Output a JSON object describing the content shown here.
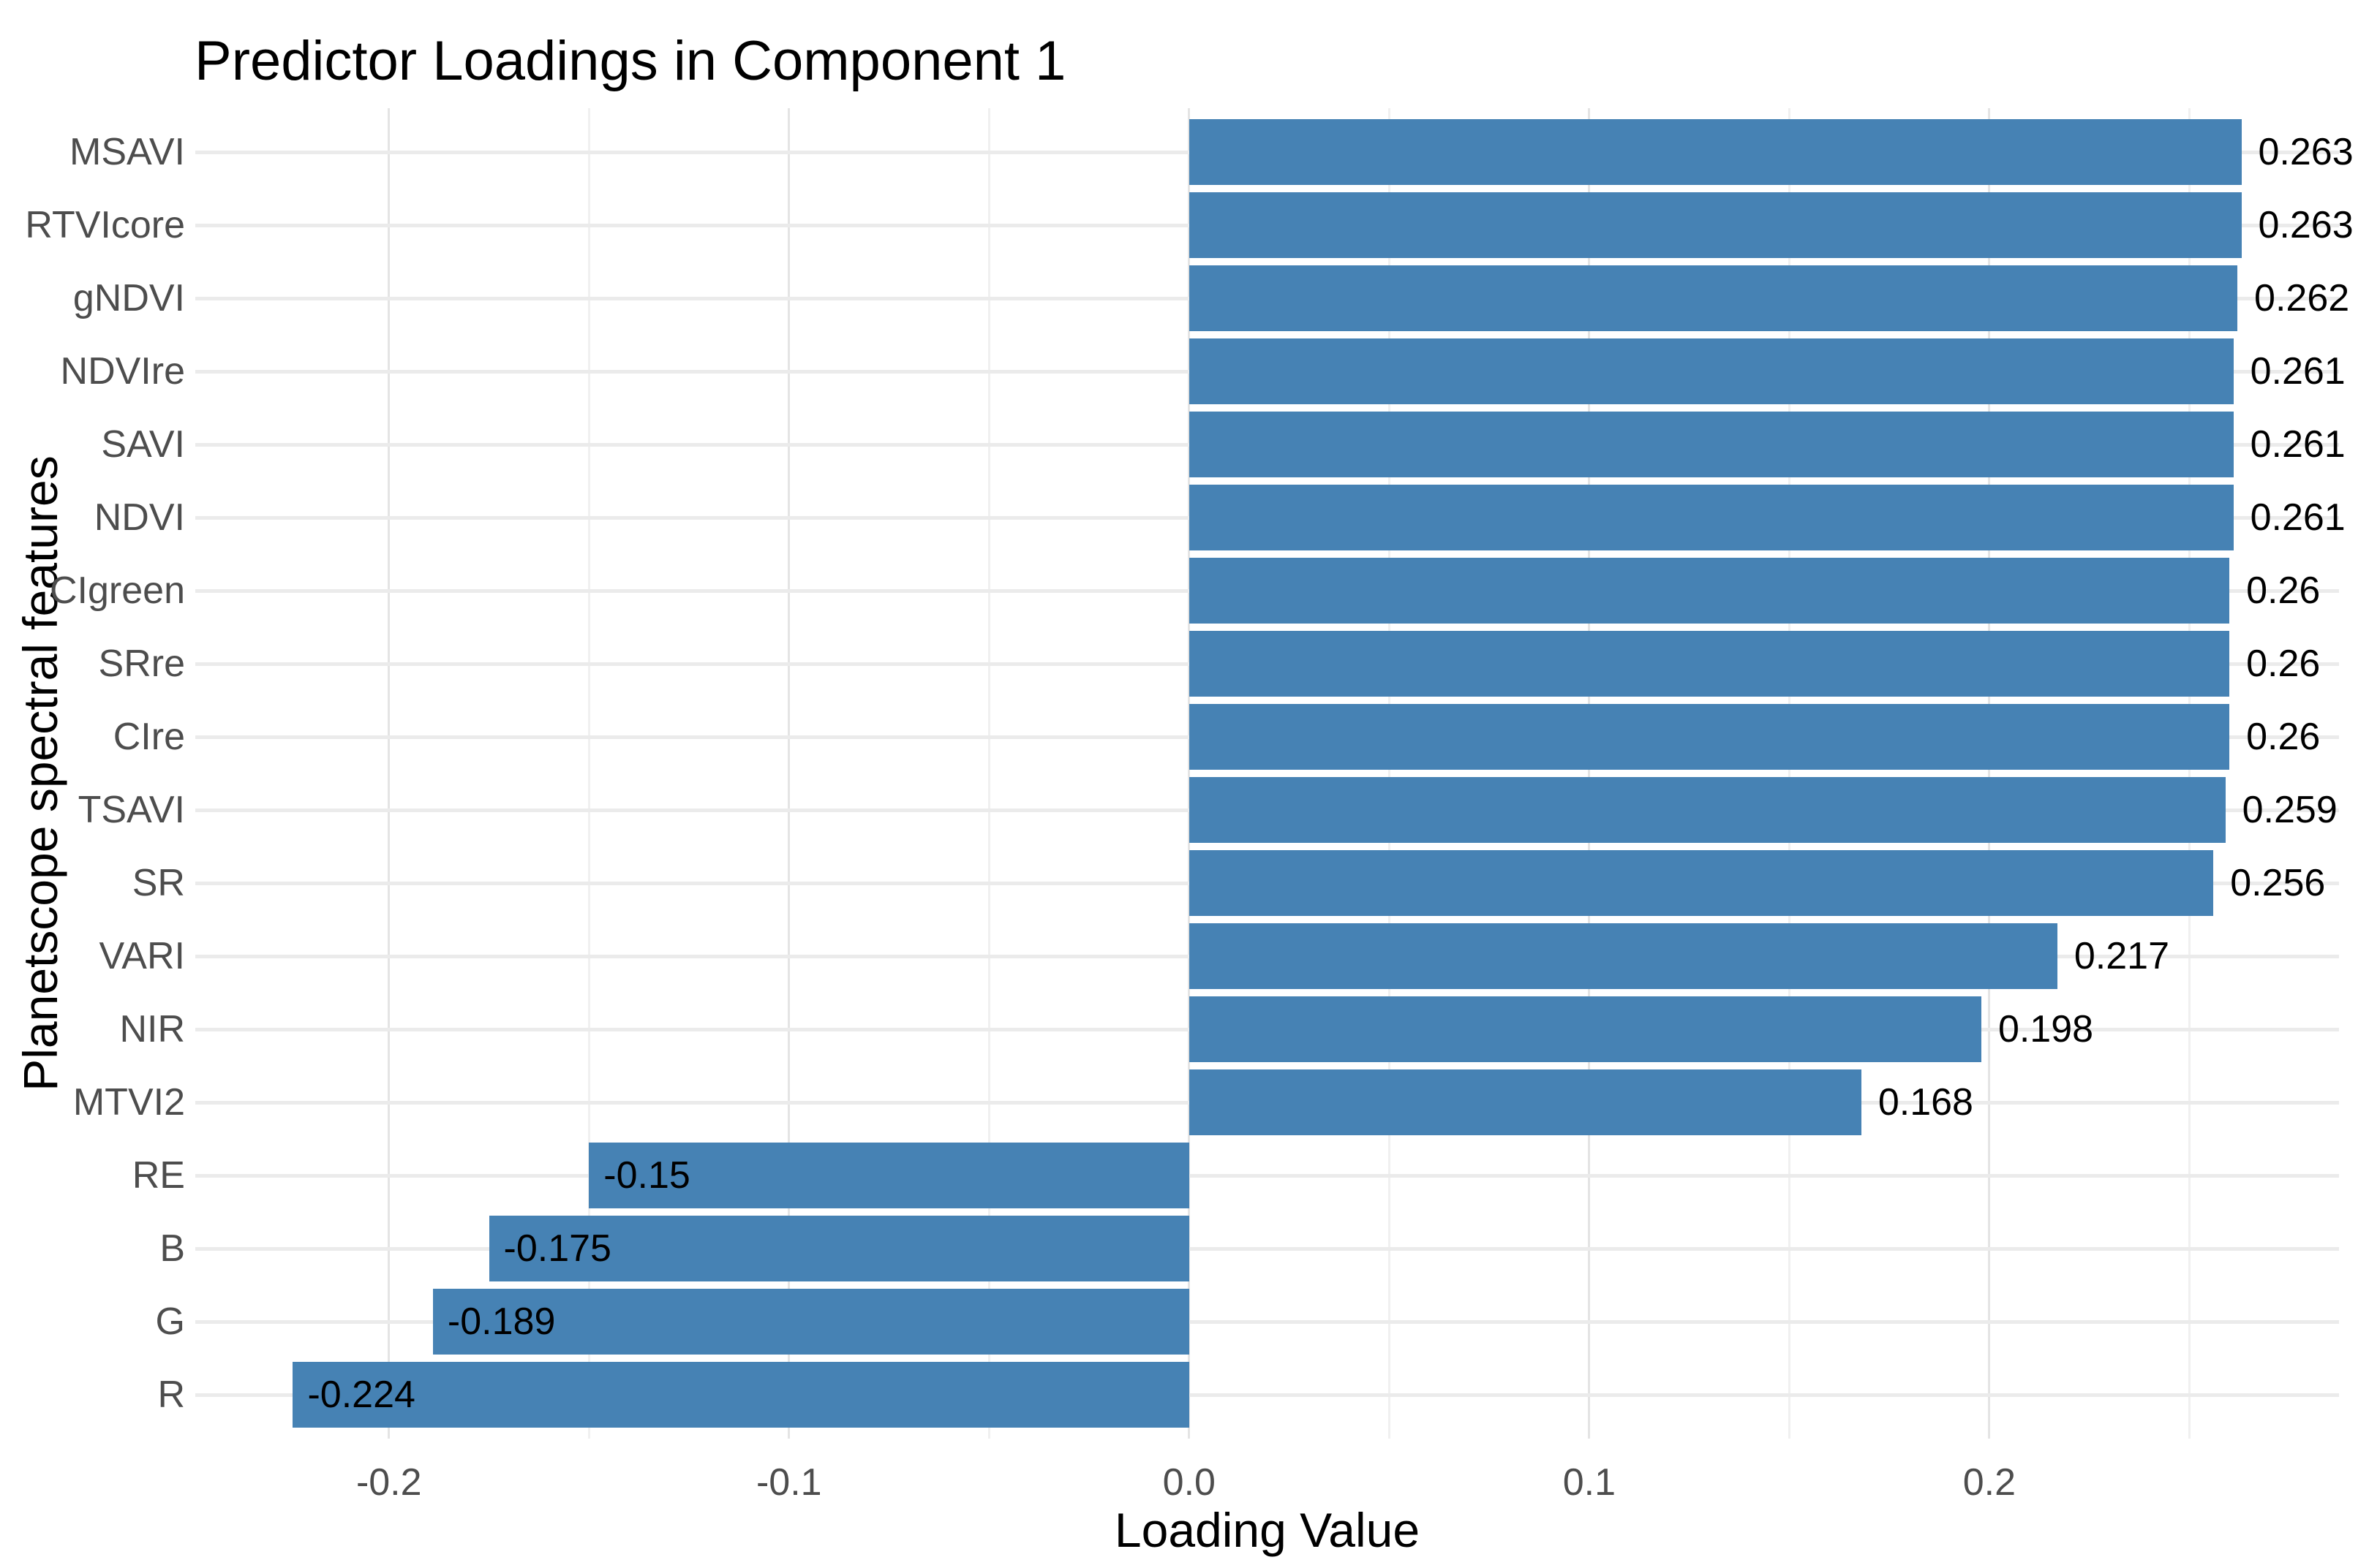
{
  "chart_data": {
    "type": "bar",
    "orientation": "horizontal",
    "title": "Predictor Loadings in Component 1",
    "xlabel": "Loading Value",
    "ylabel": "Planetscope spectral features",
    "categories": [
      "MSAVI",
      "RTVIcore",
      "gNDVI",
      "NDVIre",
      "SAVI",
      "NDVI",
      "CIgreen",
      "SRre",
      "CIre",
      "TSAVI",
      "SR",
      "VARI",
      "NIR",
      "MTVI2",
      "RE",
      "B",
      "G",
      "R"
    ],
    "values": [
      0.263,
      0.263,
      0.262,
      0.261,
      0.261,
      0.261,
      0.26,
      0.26,
      0.26,
      0.259,
      0.256,
      0.217,
      0.198,
      0.168,
      -0.15,
      -0.175,
      -0.189,
      -0.224
    ],
    "value_labels": [
      "0.263",
      "0.263",
      "0.262",
      "0.261",
      "0.261",
      "0.261",
      "0.26",
      "0.26",
      "0.26",
      "0.259",
      "0.256",
      "0.217",
      "0.198",
      "0.168",
      "-0.15",
      "-0.175",
      "-0.189",
      "-0.224"
    ],
    "xlim": [
      -0.2484,
      0.2874
    ],
    "x_major_ticks": {
      "values": [
        -0.2,
        -0.1,
        0.0,
        0.1,
        0.2
      ],
      "labels": [
        "-0.2",
        "-0.1",
        "0.0",
        "0.1",
        "0.2"
      ]
    },
    "x_minor_ticks": [
      -0.15,
      -0.05,
      0.05,
      0.15,
      0.25
    ],
    "bar_width_fraction": 0.9,
    "category_expansion": 0.6,
    "grid": {
      "horizontal_major": true,
      "vertical_major": true,
      "vertical_minor": true
    },
    "legend": "none"
  },
  "colors": {
    "bar": "#4682B4",
    "grid_row": "#EBEBEB",
    "grid_major": "#E4E4E4",
    "grid_minor": "#F0F0F0",
    "axis_text": "#4D4D4D",
    "text": "#000000",
    "background": "#FFFFFF"
  }
}
